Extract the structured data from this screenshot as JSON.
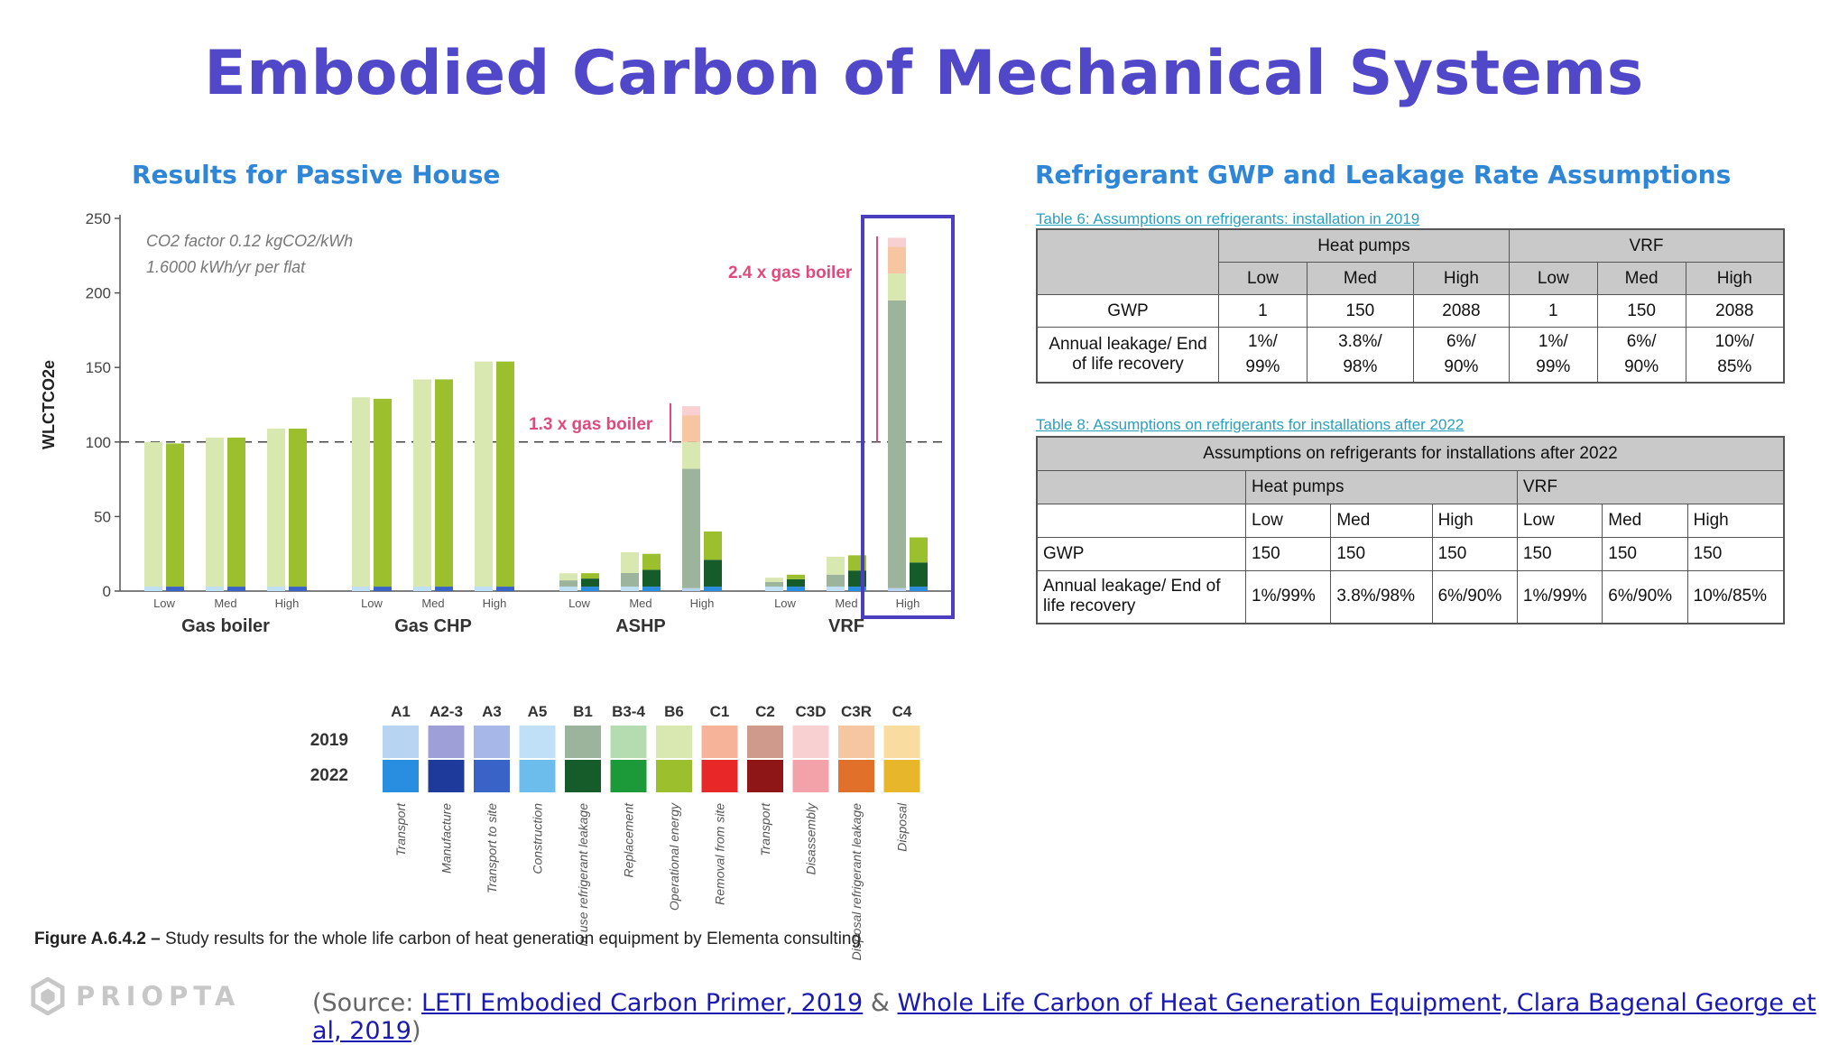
{
  "slide": {
    "title": "Embodied Carbon of Mechanical Systems",
    "left_subtitle": "Results for Passive House",
    "right_subtitle": "Refrigerant GWP and Leakage Rate Assumptions"
  },
  "chart_data": {
    "type": "bar",
    "ylabel": "WLCTCO2e",
    "ylim": [
      0,
      250
    ],
    "yticks": [
      0,
      50,
      100,
      150,
      200,
      250
    ],
    "note_line1": "CO2 factor 0.12 kgCO2/kWh",
    "note_line2": "1.6000 kWh/yr per flat",
    "reference_line": 100,
    "annotations": [
      "1.3 x gas boiler",
      "2.4 x gas boiler"
    ],
    "groups": [
      {
        "name": "Gas boiler",
        "scenarios": [
          {
            "label": "Low",
            "y2019": 100,
            "y2022": 99
          },
          {
            "label": "Med",
            "y2019": 103,
            "y2022": 103
          },
          {
            "label": "High",
            "y2019": 109,
            "y2022": 109
          }
        ]
      },
      {
        "name": "Gas CHP",
        "scenarios": [
          {
            "label": "Low",
            "y2019": 130,
            "y2022": 129
          },
          {
            "label": "Med",
            "y2019": 142,
            "y2022": 142
          },
          {
            "label": "High",
            "y2019": 154,
            "y2022": 154
          }
        ]
      },
      {
        "name": "ASHP",
        "scenarios": [
          {
            "label": "Low",
            "y2019": 12,
            "y2022": 12
          },
          {
            "label": "Med",
            "y2019": 26,
            "y2022": 25
          },
          {
            "label": "High",
            "y2019": 126,
            "y2022": 40
          }
        ]
      },
      {
        "name": "VRF",
        "scenarios": [
          {
            "label": "Low",
            "y2019": 9,
            "y2022": 11
          },
          {
            "label": "Med",
            "y2019": 23,
            "y2022": 24
          },
          {
            "label": "High",
            "y2019": 239,
            "y2022": 36
          }
        ]
      }
    ],
    "legend": {
      "years": [
        "2019",
        "2022"
      ],
      "stages": [
        {
          "code": "A1",
          "desc": "Transport",
          "c2019": "#b7d4f2",
          "c2022": "#2a8ee0"
        },
        {
          "code": "A2-3",
          "desc": "Manufacture",
          "c2019": "#9e9fd6",
          "c2022": "#1e3a9a"
        },
        {
          "code": "A3",
          "desc": "Transport to site",
          "c2019": "#a6b7e8",
          "c2022": "#3a63c8"
        },
        {
          "code": "A5",
          "desc": "Construction",
          "c2019": "#bfe0f6",
          "c2022": "#6cbcec"
        },
        {
          "code": "B1",
          "desc": "In use refrigerant leakage",
          "c2019": "#9cb39c",
          "c2022": "#165c2a"
        },
        {
          "code": "B3-4",
          "desc": "Replacement",
          "c2019": "#b4dcb0",
          "c2022": "#1c9a3a"
        },
        {
          "code": "B6",
          "desc": "Operational energy",
          "c2019": "#d9e8b0",
          "c2022": "#9cbf2e"
        },
        {
          "code": "C1",
          "desc": "Removal from site",
          "c2019": "#f6b39a",
          "c2022": "#e82828"
        },
        {
          "code": "C2",
          "desc": "Transport",
          "c2019": "#cf9a8c",
          "c2022": "#8e1616"
        },
        {
          "code": "C3D",
          "desc": "Disassembly",
          "c2019": "#f8d0d2",
          "c2022": "#f2a2a8"
        },
        {
          "code": "C3R",
          "desc": "Disposal refrigerant leakage",
          "c2019": "#f6c6a2",
          "c2022": "#e0702a"
        },
        {
          "code": "C4",
          "desc": "Disposal",
          "c2019": "#f8dca0",
          "c2022": "#e8b62a"
        }
      ]
    }
  },
  "figure_caption": {
    "label": "Figure A.6.4.2 –",
    "text": " Study results for the whole life carbon of heat generation equipment by Elementa consulting"
  },
  "table6": {
    "caption": "Table 6: Assumptions on refrigerants: installation in 2019",
    "group_headers": [
      "Heat pumps",
      "VRF"
    ],
    "sub_headers": [
      "Low",
      "Med",
      "High",
      "Low",
      "Med",
      "High"
    ],
    "rows": [
      {
        "label": "GWP",
        "values": [
          "1",
          "150",
          "2088",
          "1",
          "150",
          "2088"
        ]
      },
      {
        "label": "Annual leakage/ End of life recovery",
        "values_top": [
          "1%/",
          "3.8%/",
          "6%/",
          "1%/",
          "6%/",
          "10%/"
        ],
        "values_bottom": [
          "99%",
          "98%",
          "90%",
          "99%",
          "90%",
          "85%"
        ]
      }
    ]
  },
  "table8": {
    "caption": "Table 8: Assumptions on refrigerants for installations after 2022",
    "title": "Assumptions on refrigerants for installations after 2022",
    "group_headers": [
      "Heat pumps",
      "VRF"
    ],
    "sub_headers": [
      "Low",
      "Med",
      "High",
      "Low",
      "Med",
      "High"
    ],
    "rows": [
      {
        "label": "GWP",
        "values": [
          "150",
          "150",
          "150",
          "150",
          "150",
          "150"
        ]
      },
      {
        "label": "Annual leakage/ End of life recovery",
        "values": [
          "1%/99%",
          "3.8%/98%",
          "6%/90%",
          "1%/99%",
          "6%/90%",
          "10%/85%"
        ]
      }
    ]
  },
  "source": {
    "prefix": "(Source: ",
    "link1": "LETI Embodied Carbon Primer, 2019",
    "amp": " & ",
    "link2": "Whole Life Carbon of Heat Generation Equipment, Clara Bagenal George et al, 2019",
    "suffix": ")"
  },
  "logo": {
    "text": "PRIOPTA"
  },
  "colors": {
    "title": "#5148c9",
    "subtitle": "#2f86d6",
    "highlight_box": "#4b3fc0",
    "annotation": "#e04a7a"
  }
}
